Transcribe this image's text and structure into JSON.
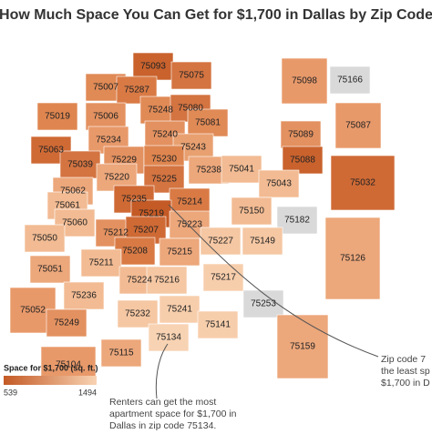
{
  "header": {
    "title": "How Much Space You Can Get for $1,700 in Dallas by Zip Code"
  },
  "zips": [
    {
      "label": "75093",
      "color": "#c9622d"
    },
    {
      "label": "75007",
      "color": "#e08a56"
    },
    {
      "label": "75287",
      "color": "#d97a45"
    },
    {
      "label": "75075",
      "color": "#d47441"
    },
    {
      "label": "75098",
      "color": "#e8996a"
    },
    {
      "label": "75166",
      "color": "#d9d9d9"
    },
    {
      "label": "75019",
      "color": "#df8650"
    },
    {
      "label": "75006",
      "color": "#e39160"
    },
    {
      "label": "75248",
      "color": "#e08a56"
    },
    {
      "label": "75080",
      "color": "#d47441"
    },
    {
      "label": "75081",
      "color": "#e08a56"
    },
    {
      "label": "75087",
      "color": "#e8996a"
    },
    {
      "label": "75240",
      "color": "#e39160"
    },
    {
      "label": "75089",
      "color": "#e39160"
    },
    {
      "label": "75063",
      "color": "#cf6a35"
    },
    {
      "label": "75234",
      "color": "#e8996a"
    },
    {
      "label": "75243",
      "color": "#e8a070"
    },
    {
      "label": "75088",
      "color": "#c9622d"
    },
    {
      "label": "75039",
      "color": "#d47441"
    },
    {
      "label": "75229",
      "color": "#e39160"
    },
    {
      "label": "75230",
      "color": "#df8650"
    },
    {
      "label": "75238",
      "color": "#eca77b"
    },
    {
      "label": "75041",
      "color": "#f2bb93"
    },
    {
      "label": "75032",
      "color": "#cf6a35"
    },
    {
      "label": "75062",
      "color": "#eca77b"
    },
    {
      "label": "75220",
      "color": "#eca77b"
    },
    {
      "label": "75225",
      "color": "#d47441"
    },
    {
      "label": "75043",
      "color": "#f2bb93"
    },
    {
      "label": "75061",
      "color": "#f2bb93"
    },
    {
      "label": "75235",
      "color": "#cf6a35"
    },
    {
      "label": "75214",
      "color": "#d97a45"
    },
    {
      "label": "75219",
      "color": "#c45a25"
    },
    {
      "label": "75150",
      "color": "#f2bb93"
    },
    {
      "label": "75060",
      "color": "#f2bb93"
    },
    {
      "label": "75223",
      "color": "#eca77b"
    },
    {
      "label": "75182",
      "color": "#d9d9d9"
    },
    {
      "label": "75212",
      "color": "#e39160"
    },
    {
      "label": "75207",
      "color": "#cf6a35"
    },
    {
      "label": "75050",
      "color": "#f2bb93"
    },
    {
      "label": "75227",
      "color": "#f5c7a3"
    },
    {
      "label": "75149",
      "color": "#f5c7a3"
    },
    {
      "label": "75208",
      "color": "#d97a45"
    },
    {
      "label": "75215",
      "color": "#eca77b"
    },
    {
      "label": "75126",
      "color": "#eca77b"
    },
    {
      "label": "75211",
      "color": "#f2bb93"
    },
    {
      "label": "75051",
      "color": "#eca77b"
    },
    {
      "label": "75224",
      "color": "#f2bb93"
    },
    {
      "label": "75216",
      "color": "#f5c7a3"
    },
    {
      "label": "75217",
      "color": "#f7ceac"
    },
    {
      "label": "75236",
      "color": "#f2bb93"
    },
    {
      "label": "75052",
      "color": "#e8996a"
    },
    {
      "label": "75232",
      "color": "#f5c7a3"
    },
    {
      "label": "75241",
      "color": "#f7ceac"
    },
    {
      "label": "75253",
      "color": "#d9d9d9"
    },
    {
      "label": "75249",
      "color": "#e39160"
    },
    {
      "label": "75141",
      "color": "#f7ceac"
    },
    {
      "label": "75134",
      "color": "#f8d3b3"
    },
    {
      "label": "75115",
      "color": "#eca77b"
    },
    {
      "label": "75159",
      "color": "#eca77b"
    },
    {
      "label": "75104",
      "color": "#e8996a"
    }
  ],
  "legend": {
    "title": "Space for $1,700 (sq. ft.)",
    "min": 539,
    "max": 1494,
    "colors": [
      "#c45a25",
      "#f8d3b3"
    ]
  },
  "annotations": {
    "right": [
      "Zip code 7",
      "the least sp",
      "$1,700 in D"
    ],
    "left": [
      "Renters can get the most",
      "apartment space for $1,700 in",
      "Dallas in zip code 75134."
    ]
  }
}
